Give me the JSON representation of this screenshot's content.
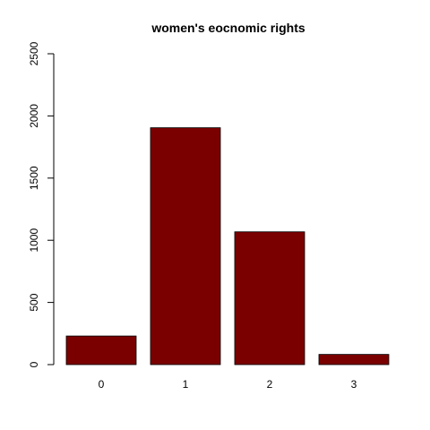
{
  "chart_data": {
    "type": "bar",
    "title": "women's eocnomic rights",
    "xlabel": "",
    "ylabel": "",
    "categories": [
      "0",
      "1",
      "2",
      "3"
    ],
    "values": [
      230,
      1905,
      1068,
      82
    ],
    "ylim": [
      0,
      2500
    ],
    "y_ticks": [
      0,
      500,
      1000,
      1500,
      2000,
      2500
    ],
    "y_tick_labels": [
      "0",
      "500",
      "1000",
      "1500",
      "2000",
      "2500"
    ],
    "bar_color": "#7a0000",
    "grid": false,
    "legend": "none"
  }
}
